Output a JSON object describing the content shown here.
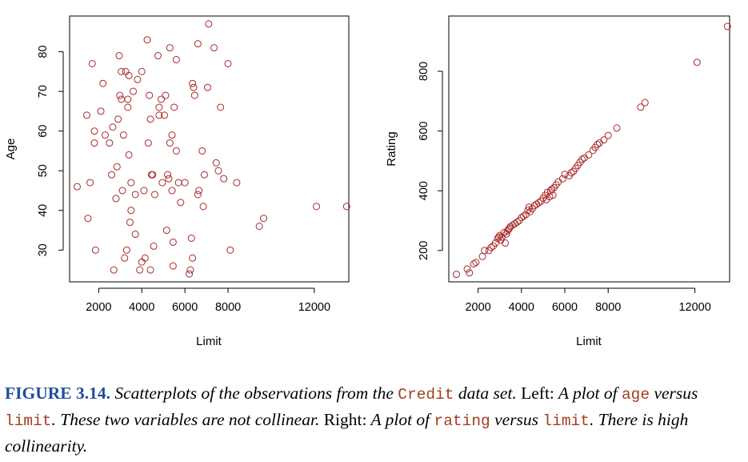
{
  "colors": {
    "points": "#a52a2a",
    "axis": "#000000",
    "fig_label": "#1f4e9a",
    "code": "#a23e1e"
  },
  "chart_data": [
    {
      "type": "scatter",
      "xlabel": "Limit",
      "ylabel": "Age",
      "xlim": [
        650,
        13600
      ],
      "ylim": [
        22,
        89
      ],
      "x_ticks": [
        2000,
        4000,
        6000,
        8000,
        12000
      ],
      "y_ticks": [
        30,
        40,
        50,
        60,
        70,
        80
      ],
      "x_tick_labels": [
        "2000",
        "4000",
        "6000",
        "8000",
        "12000"
      ],
      "y_tick_labels": [
        "30",
        "40",
        "50",
        "60",
        "70",
        "80"
      ],
      "grid": false,
      "points": [
        {
          "x": 1000,
          "y": 46
        },
        {
          "x": 1450,
          "y": 64
        },
        {
          "x": 1500,
          "y": 38
        },
        {
          "x": 1600,
          "y": 47
        },
        {
          "x": 1700,
          "y": 77
        },
        {
          "x": 1800,
          "y": 60
        },
        {
          "x": 1800,
          "y": 57
        },
        {
          "x": 1850,
          "y": 30
        },
        {
          "x": 2100,
          "y": 65
        },
        {
          "x": 2200,
          "y": 72
        },
        {
          "x": 2300,
          "y": 59
        },
        {
          "x": 2500,
          "y": 57
        },
        {
          "x": 2600,
          "y": 49
        },
        {
          "x": 2650,
          "y": 61
        },
        {
          "x": 2700,
          "y": 25
        },
        {
          "x": 2800,
          "y": 43
        },
        {
          "x": 2850,
          "y": 51
        },
        {
          "x": 2900,
          "y": 63
        },
        {
          "x": 2950,
          "y": 79
        },
        {
          "x": 2980,
          "y": 69
        },
        {
          "x": 3050,
          "y": 68
        },
        {
          "x": 3050,
          "y": 75
        },
        {
          "x": 3100,
          "y": 45
        },
        {
          "x": 3150,
          "y": 59
        },
        {
          "x": 3200,
          "y": 28
        },
        {
          "x": 3250,
          "y": 75
        },
        {
          "x": 3300,
          "y": 30
        },
        {
          "x": 3350,
          "y": 68
        },
        {
          "x": 3350,
          "y": 66
        },
        {
          "x": 3400,
          "y": 54
        },
        {
          "x": 3400,
          "y": 74
        },
        {
          "x": 3450,
          "y": 37
        },
        {
          "x": 3500,
          "y": 40
        },
        {
          "x": 3500,
          "y": 47
        },
        {
          "x": 3600,
          "y": 70
        },
        {
          "x": 3700,
          "y": 44
        },
        {
          "x": 3700,
          "y": 34
        },
        {
          "x": 3800,
          "y": 73
        },
        {
          "x": 3900,
          "y": 25
        },
        {
          "x": 4000,
          "y": 27
        },
        {
          "x": 4000,
          "y": 75
        },
        {
          "x": 4100,
          "y": 45
        },
        {
          "x": 4150,
          "y": 28
        },
        {
          "x": 4250,
          "y": 83
        },
        {
          "x": 4300,
          "y": 57
        },
        {
          "x": 4350,
          "y": 69
        },
        {
          "x": 4400,
          "y": 25
        },
        {
          "x": 4400,
          "y": 63
        },
        {
          "x": 4450,
          "y": 49
        },
        {
          "x": 4500,
          "y": 49
        },
        {
          "x": 4550,
          "y": 31
        },
        {
          "x": 4600,
          "y": 44
        },
        {
          "x": 4750,
          "y": 79
        },
        {
          "x": 4800,
          "y": 66
        },
        {
          "x": 4800,
          "y": 64
        },
        {
          "x": 4900,
          "y": 68
        },
        {
          "x": 4950,
          "y": 47
        },
        {
          "x": 5050,
          "y": 64
        },
        {
          "x": 5100,
          "y": 69
        },
        {
          "x": 5150,
          "y": 35
        },
        {
          "x": 5200,
          "y": 49
        },
        {
          "x": 5250,
          "y": 48
        },
        {
          "x": 5300,
          "y": 81
        },
        {
          "x": 5300,
          "y": 57
        },
        {
          "x": 5400,
          "y": 59
        },
        {
          "x": 5400,
          "y": 45
        },
        {
          "x": 5450,
          "y": 32
        },
        {
          "x": 5450,
          "y": 26
        },
        {
          "x": 5500,
          "y": 66
        },
        {
          "x": 5600,
          "y": 78
        },
        {
          "x": 5600,
          "y": 55
        },
        {
          "x": 5700,
          "y": 47
        },
        {
          "x": 5800,
          "y": 42
        },
        {
          "x": 6000,
          "y": 47
        },
        {
          "x": 6200,
          "y": 24
        },
        {
          "x": 6250,
          "y": 25
        },
        {
          "x": 6300,
          "y": 33
        },
        {
          "x": 6350,
          "y": 72
        },
        {
          "x": 6350,
          "y": 28
        },
        {
          "x": 6400,
          "y": 71
        },
        {
          "x": 6450,
          "y": 69
        },
        {
          "x": 6600,
          "y": 44
        },
        {
          "x": 6600,
          "y": 82
        },
        {
          "x": 6650,
          "y": 45
        },
        {
          "x": 6800,
          "y": 55
        },
        {
          "x": 6850,
          "y": 41
        },
        {
          "x": 6900,
          "y": 49
        },
        {
          "x": 7050,
          "y": 71
        },
        {
          "x": 7100,
          "y": 87
        },
        {
          "x": 7350,
          "y": 81
        },
        {
          "x": 7450,
          "y": 52
        },
        {
          "x": 7550,
          "y": 50
        },
        {
          "x": 7650,
          "y": 66
        },
        {
          "x": 7800,
          "y": 48
        },
        {
          "x": 8000,
          "y": 77
        },
        {
          "x": 8100,
          "y": 30
        },
        {
          "x": 8400,
          "y": 47
        },
        {
          "x": 9450,
          "y": 36
        },
        {
          "x": 9650,
          "y": 38
        },
        {
          "x": 12100,
          "y": 41
        },
        {
          "x": 13500,
          "y": 41
        }
      ]
    },
    {
      "type": "scatter",
      "xlabel": "Limit",
      "ylabel": "Rating",
      "xlim": [
        650,
        13600
      ],
      "ylim": [
        95,
        985
      ],
      "x_ticks": [
        2000,
        4000,
        6000,
        8000,
        12000
      ],
      "y_ticks": [
        200,
        400,
        600,
        800
      ],
      "x_tick_labels": [
        "2000",
        "4000",
        "6000",
        "8000",
        "12000"
      ],
      "y_tick_labels": [
        "200",
        "400",
        "600",
        "800"
      ],
      "grid": false,
      "points": [
        {
          "x": 1000,
          "y": 120
        },
        {
          "x": 1500,
          "y": 138
        },
        {
          "x": 1600,
          "y": 125
        },
        {
          "x": 1800,
          "y": 155
        },
        {
          "x": 1900,
          "y": 160
        },
        {
          "x": 2200,
          "y": 180
        },
        {
          "x": 2300,
          "y": 200
        },
        {
          "x": 2500,
          "y": 200
        },
        {
          "x": 2600,
          "y": 210
        },
        {
          "x": 2700,
          "y": 215
        },
        {
          "x": 2800,
          "y": 225
        },
        {
          "x": 2900,
          "y": 240
        },
        {
          "x": 2950,
          "y": 245
        },
        {
          "x": 3000,
          "y": 250
        },
        {
          "x": 3050,
          "y": 235
        },
        {
          "x": 3100,
          "y": 245
        },
        {
          "x": 3200,
          "y": 260
        },
        {
          "x": 3250,
          "y": 225
        },
        {
          "x": 3300,
          "y": 255
        },
        {
          "x": 3350,
          "y": 265
        },
        {
          "x": 3400,
          "y": 270
        },
        {
          "x": 3450,
          "y": 275
        },
        {
          "x": 3500,
          "y": 280
        },
        {
          "x": 3600,
          "y": 285
        },
        {
          "x": 3700,
          "y": 290
        },
        {
          "x": 3800,
          "y": 295
        },
        {
          "x": 3900,
          "y": 300
        },
        {
          "x": 4000,
          "y": 310
        },
        {
          "x": 4100,
          "y": 315
        },
        {
          "x": 4200,
          "y": 320
        },
        {
          "x": 4300,
          "y": 335
        },
        {
          "x": 4350,
          "y": 345
        },
        {
          "x": 4400,
          "y": 330
        },
        {
          "x": 4500,
          "y": 340
        },
        {
          "x": 4600,
          "y": 350
        },
        {
          "x": 4700,
          "y": 355
        },
        {
          "x": 4800,
          "y": 360
        },
        {
          "x": 4900,
          "y": 365
        },
        {
          "x": 5000,
          "y": 375
        },
        {
          "x": 5100,
          "y": 385
        },
        {
          "x": 5150,
          "y": 370
        },
        {
          "x": 5200,
          "y": 395
        },
        {
          "x": 5300,
          "y": 380
        },
        {
          "x": 5350,
          "y": 400
        },
        {
          "x": 5400,
          "y": 405
        },
        {
          "x": 5450,
          "y": 385
        },
        {
          "x": 5500,
          "y": 410
        },
        {
          "x": 5600,
          "y": 420
        },
        {
          "x": 5700,
          "y": 430
        },
        {
          "x": 5900,
          "y": 440
        },
        {
          "x": 6000,
          "y": 455
        },
        {
          "x": 6200,
          "y": 450
        },
        {
          "x": 6300,
          "y": 460
        },
        {
          "x": 6400,
          "y": 465
        },
        {
          "x": 6500,
          "y": 475
        },
        {
          "x": 6600,
          "y": 485
        },
        {
          "x": 6700,
          "y": 495
        },
        {
          "x": 6800,
          "y": 505
        },
        {
          "x": 6900,
          "y": 510
        },
        {
          "x": 7100,
          "y": 520
        },
        {
          "x": 7300,
          "y": 535
        },
        {
          "x": 7400,
          "y": 545
        },
        {
          "x": 7500,
          "y": 555
        },
        {
          "x": 7600,
          "y": 560
        },
        {
          "x": 7800,
          "y": 570
        },
        {
          "x": 8000,
          "y": 585
        },
        {
          "x": 8400,
          "y": 610
        },
        {
          "x": 9500,
          "y": 680
        },
        {
          "x": 9700,
          "y": 695
        },
        {
          "x": 12100,
          "y": 830
        },
        {
          "x": 13500,
          "y": 950
        }
      ]
    }
  ],
  "caption": {
    "label": "FIGURE 3.14.",
    "seg1": " Scatterplots of the observations from the ",
    "code1": "Credit",
    "seg2": " data set.",
    "seg3": " Left:",
    "seg4": " A plot of ",
    "code2": "age",
    "seg5": " versus ",
    "code3": "limit",
    "seg6": ". These two variables are not collinear.",
    "seg7": " Right:",
    "seg8": " A plot of ",
    "code4": "rating",
    "seg9": " versus ",
    "code5": "limit",
    "seg10": ". There is high collinearity."
  }
}
